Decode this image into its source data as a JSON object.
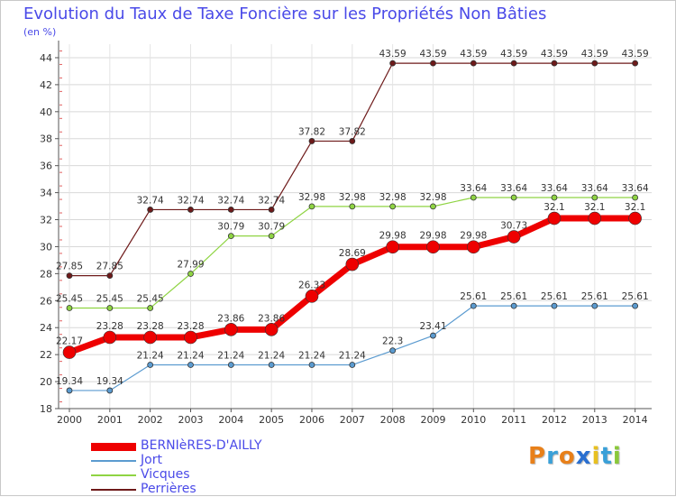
{
  "title": "Evolution du Taux de Taxe Foncière sur les Propriétés Non Bâties",
  "unit": "(en %)",
  "logo": {
    "text": "Proxiti",
    "letters": [
      {
        "ch": "P",
        "color": "#e8801a"
      },
      {
        "ch": "r",
        "color": "#3aa0d8"
      },
      {
        "ch": "o",
        "color": "#e8801a"
      },
      {
        "ch": "x",
        "color": "#2a6fd0"
      },
      {
        "ch": "i",
        "color": "#e8c020"
      },
      {
        "ch": "t",
        "color": "#3aa0d8"
      },
      {
        "ch": "i",
        "color": "#8ac83a"
      }
    ]
  },
  "chart_data": {
    "type": "line",
    "x": [
      2000,
      2001,
      2002,
      2003,
      2004,
      2005,
      2006,
      2007,
      2008,
      2009,
      2010,
      2011,
      2012,
      2013,
      2014
    ],
    "ylim": [
      18,
      45
    ],
    "yticks": [
      18,
      20,
      22,
      24,
      26,
      28,
      30,
      32,
      34,
      36,
      38,
      40,
      42,
      44
    ],
    "grid": true,
    "legend_position": "bottom-left",
    "series": [
      {
        "name": "Perrières",
        "color": "#6e1a1a",
        "line_width": 1.2,
        "marker_size": 3,
        "values": [
          27.85,
          27.85,
          32.74,
          32.74,
          32.74,
          32.74,
          37.82,
          37.82,
          43.59,
          43.59,
          43.59,
          43.59,
          43.59,
          43.59,
          43.59
        ],
        "labels": [
          "27.85",
          "27.85",
          "32.74",
          "32.74",
          "32.74",
          "32.74",
          "37.82",
          "37.82",
          "43.59",
          "43.59",
          "43.59",
          "43.59",
          "43.59",
          "43.59",
          "43.59"
        ]
      },
      {
        "name": "Vicques",
        "color": "#8fd443",
        "line_width": 1.2,
        "marker_size": 3,
        "values": [
          25.45,
          25.45,
          25.45,
          27.99,
          30.79,
          30.79,
          32.98,
          32.98,
          32.98,
          32.98,
          33.64,
          33.64,
          33.64,
          33.64,
          33.64
        ],
        "labels": [
          "25.45",
          "25.45",
          "25.45",
          "27.99",
          "30.79",
          "30.79",
          "32.98",
          "32.98",
          "32.98",
          "32.98",
          "33.64",
          "33.64",
          "33.64",
          "33.64",
          "33.64"
        ]
      },
      {
        "name": "Jort",
        "color": "#5b9bd0",
        "line_width": 1.2,
        "marker_size": 3,
        "values": [
          19.34,
          19.34,
          21.24,
          21.24,
          21.24,
          21.24,
          21.24,
          21.24,
          22.3,
          23.41,
          25.61,
          25.61,
          25.61,
          25.61,
          25.61
        ],
        "labels": [
          "19.34",
          "19.34",
          "21.24",
          "21.24",
          "21.24",
          "21.24",
          "21.24",
          "21.24",
          "22.3",
          "23.41",
          "25.61",
          "25.61",
          "25.61",
          "25.61",
          "25.61"
        ]
      },
      {
        "name": "BERNIèRES-D'AILLY",
        "color": "#ee0000",
        "line_width": 7,
        "marker_size": 7,
        "values": [
          22.17,
          23.28,
          23.28,
          23.28,
          23.86,
          23.86,
          26.33,
          28.69,
          29.98,
          29.98,
          29.98,
          30.73,
          32.1,
          32.1,
          32.1
        ],
        "labels": [
          "22.17",
          "23.28",
          "23.28",
          "23.28",
          "23.86",
          "23.86",
          "26.33",
          "28.69",
          "29.98",
          "29.98",
          "29.98",
          "30.73",
          "32.1",
          "32.1",
          "32.1"
        ]
      }
    ]
  }
}
